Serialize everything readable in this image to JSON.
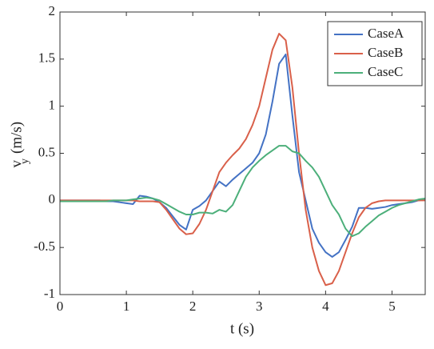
{
  "chart_data": {
    "type": "line",
    "xlabel": "t (s)",
    "ylabel": {
      "main": "v",
      "sub": "y",
      "unit": "(m/s)"
    },
    "x": [
      0,
      0.1,
      0.2,
      0.3,
      0.4,
      0.5,
      0.6,
      0.7,
      0.8,
      0.9,
      1.0,
      1.1,
      1.2,
      1.3,
      1.4,
      1.5,
      1.6,
      1.7,
      1.8,
      1.9,
      2.0,
      2.1,
      2.2,
      2.3,
      2.4,
      2.5,
      2.6,
      2.7,
      2.8,
      2.9,
      3.0,
      3.1,
      3.2,
      3.3,
      3.4,
      3.5,
      3.6,
      3.7,
      3.8,
      3.9,
      4.0,
      4.1,
      4.2,
      4.3,
      4.4,
      4.5,
      4.6,
      4.7,
      4.8,
      4.9,
      5.0,
      5.1,
      5.2,
      5.3,
      5.4,
      5.5
    ],
    "series": [
      {
        "name": "CaseA",
        "color": "#4472c4",
        "values": [
          0,
          0,
          0,
          0,
          0,
          0,
          0,
          -0.01,
          -0.01,
          -0.02,
          -0.03,
          -0.04,
          0.05,
          0.04,
          0.02,
          -0.02,
          -0.08,
          -0.17,
          -0.26,
          -0.31,
          -0.1,
          -0.06,
          0,
          0.1,
          0.2,
          0.15,
          0.22,
          0.28,
          0.34,
          0.4,
          0.5,
          0.7,
          1.05,
          1.45,
          1.55,
          0.9,
          0.3,
          0,
          -0.3,
          -0.45,
          -0.55,
          -0.6,
          -0.55,
          -0.42,
          -0.28,
          -0.08,
          -0.08,
          -0.09,
          -0.08,
          -0.07,
          -0.05,
          -0.04,
          -0.03,
          -0.02,
          0,
          0.01
        ]
      },
      {
        "name": "CaseB",
        "color": "#d9604a",
        "values": [
          0,
          0,
          0,
          0,
          0,
          0,
          0,
          0,
          0,
          0,
          0,
          0,
          -0.01,
          -0.01,
          -0.01,
          -0.02,
          -0.1,
          -0.2,
          -0.3,
          -0.36,
          -0.35,
          -0.25,
          -0.1,
          0.1,
          0.3,
          0.4,
          0.48,
          0.55,
          0.65,
          0.8,
          1.0,
          1.3,
          1.6,
          1.77,
          1.7,
          1.2,
          0.5,
          -0.1,
          -0.5,
          -0.75,
          -0.9,
          -0.88,
          -0.75,
          -0.55,
          -0.35,
          -0.18,
          -0.08,
          -0.03,
          -0.01,
          0,
          0,
          0,
          0,
          0,
          0,
          0
        ]
      },
      {
        "name": "CaseC",
        "color": "#4caf7a",
        "values": [
          -0.01,
          -0.01,
          -0.01,
          -0.01,
          -0.01,
          -0.01,
          -0.01,
          -0.01,
          0,
          0,
          0,
          0.01,
          0.02,
          0.03,
          0.02,
          0,
          -0.04,
          -0.08,
          -0.12,
          -0.15,
          -0.15,
          -0.13,
          -0.13,
          -0.14,
          -0.1,
          -0.12,
          -0.05,
          0.1,
          0.25,
          0.35,
          0.42,
          0.48,
          0.53,
          0.58,
          0.58,
          0.52,
          0.5,
          0.42,
          0.35,
          0.25,
          0.1,
          -0.05,
          -0.15,
          -0.3,
          -0.38,
          -0.35,
          -0.28,
          -0.22,
          -0.16,
          -0.12,
          -0.08,
          -0.05,
          -0.03,
          -0.01,
          0.01,
          0.02
        ]
      }
    ],
    "xlim": [
      0,
      5.5
    ],
    "xticks": [
      0,
      1,
      2,
      3,
      4,
      5
    ],
    "ylim": [
      -1,
      2
    ],
    "yticks": [
      -1,
      -0.5,
      0,
      0.5,
      1,
      1.5,
      2
    ],
    "legend": "top-right",
    "grid": false
  }
}
